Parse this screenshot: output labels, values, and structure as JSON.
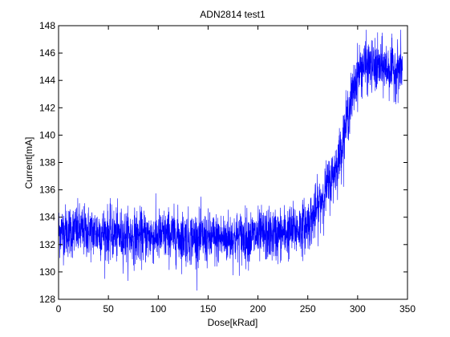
{
  "chart_data": {
    "type": "line",
    "title": "ADN2814 test1",
    "xlabel": "Dose[kRad]",
    "ylabel": "Current[mA]",
    "xlim": [
      0,
      350
    ],
    "ylim": [
      128,
      148
    ],
    "xticks": [
      0,
      50,
      100,
      150,
      200,
      250,
      300,
      350
    ],
    "yticks": [
      128,
      130,
      132,
      134,
      136,
      138,
      140,
      142,
      144,
      146,
      148
    ],
    "grid": false,
    "series": [
      {
        "color": "#0000ff",
        "x": [
          0,
          10,
          20,
          30,
          40,
          50,
          60,
          70,
          80,
          90,
          100,
          110,
          120,
          130,
          140,
          150,
          160,
          170,
          180,
          190,
          200,
          210,
          220,
          230,
          240,
          250,
          255,
          260,
          265,
          270,
          275,
          280,
          285,
          290,
          295,
          300,
          305,
          310,
          315,
          320,
          325,
          330,
          335,
          340,
          345
        ],
        "y": [
          133.0,
          133.0,
          133.0,
          132.9,
          132.9,
          132.8,
          132.7,
          132.6,
          132.6,
          132.6,
          132.6,
          132.7,
          132.6,
          132.5,
          132.5,
          132.4,
          132.4,
          132.5,
          132.5,
          132.6,
          132.6,
          132.7,
          132.7,
          132.9,
          133.1,
          133.5,
          134.0,
          134.7,
          135.5,
          136.3,
          137.0,
          138.0,
          139.5,
          141.5,
          143.0,
          144.5,
          145.0,
          145.1,
          145.0,
          144.9,
          145.0,
          144.9,
          144.8,
          144.8,
          145.0
        ],
        "noise_amplitude": 1.6
      }
    ]
  }
}
